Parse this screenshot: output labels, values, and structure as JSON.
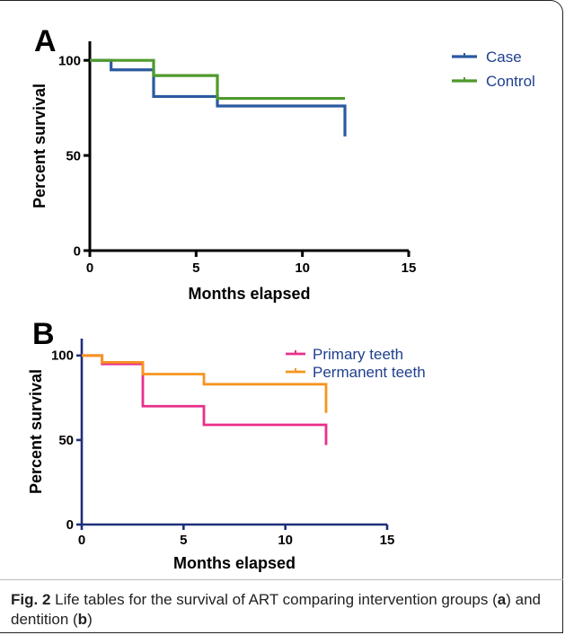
{
  "chart_data": [
    {
      "panel": "A",
      "type": "line",
      "step": true,
      "xlabel": "Months elapsed",
      "ylabel": "Percent survival",
      "xlim": [
        0,
        15
      ],
      "ylim": [
        0,
        110
      ],
      "xticks": [
        0,
        5,
        10,
        15
      ],
      "yticks": [
        0,
        50,
        100
      ],
      "axis_color": "#000000",
      "legend_position": "top-right",
      "series": [
        {
          "name": "Case",
          "color": "#2b5aa0",
          "points": [
            [
              0,
              100
            ],
            [
              1,
              95
            ],
            [
              3,
              81
            ],
            [
              6,
              76
            ],
            [
              12,
              60
            ]
          ]
        },
        {
          "name": "Control",
          "color": "#4f9a2c",
          "points": [
            [
              0,
              100
            ],
            [
              3,
              92
            ],
            [
              6,
              80
            ],
            [
              12,
              80
            ]
          ]
        }
      ]
    },
    {
      "panel": "B",
      "type": "line",
      "step": true,
      "xlabel": "Months elapsed",
      "ylabel": "Percent survival",
      "xlim": [
        0,
        15
      ],
      "ylim": [
        0,
        110
      ],
      "xticks": [
        0,
        5,
        10,
        15
      ],
      "yticks": [
        0,
        50,
        100
      ],
      "axis_color": "#1f2f7a",
      "legend_position": "top-right",
      "series": [
        {
          "name": "Primary teeth",
          "color": "#e8308a",
          "points": [
            [
              0,
              100
            ],
            [
              1,
              95
            ],
            [
              3,
              70
            ],
            [
              6,
              59
            ],
            [
              12,
              47
            ]
          ]
        },
        {
          "name": "Permanent teeth",
          "color": "#f7941d",
          "points": [
            [
              0,
              100
            ],
            [
              1,
              96
            ],
            [
              3,
              89
            ],
            [
              6,
              83
            ],
            [
              12,
              66
            ]
          ]
        }
      ]
    }
  ],
  "caption": {
    "fig_label": "Fig. 2",
    "text_1": " Life tables for the survival of ART comparing intervention groups (",
    "letter_a": "a",
    "text_2": ") and dentition (",
    "letter_b": "b",
    "text_3": ")"
  }
}
